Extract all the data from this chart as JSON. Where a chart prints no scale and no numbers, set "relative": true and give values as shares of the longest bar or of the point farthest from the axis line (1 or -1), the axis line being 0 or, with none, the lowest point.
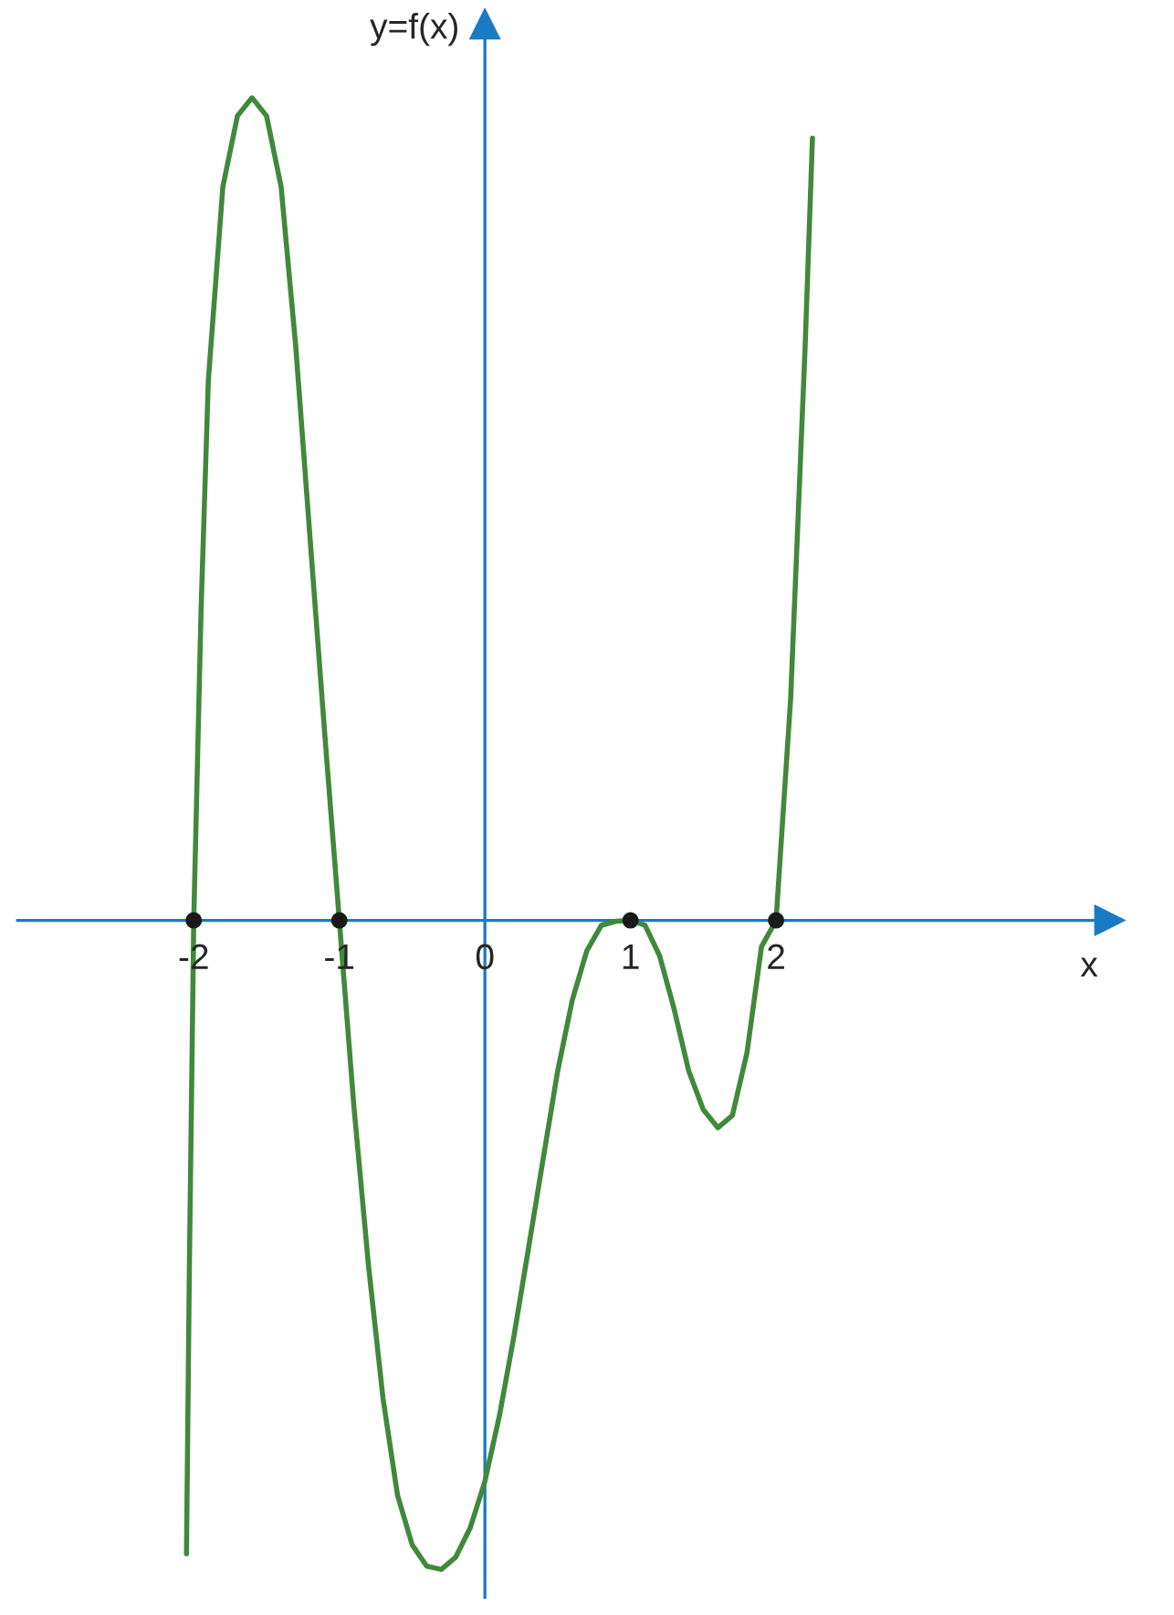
{
  "chart_data": {
    "type": "line",
    "relative": true,
    "xlabel": "x",
    "ylabel": "y=f(x)",
    "xlim": [
      -3.21,
      4.29
    ],
    "xticks": [
      -2,
      -1,
      0,
      1,
      2
    ],
    "grid": false,
    "legend": false,
    "ref_lines": [
      {
        "axis": "x",
        "value": 0,
        "color": "#1a7bc4"
      }
    ],
    "series": [
      {
        "type": "line",
        "color": "#3f8a3a",
        "marker": "none",
        "line_style": "solid",
        "x": [
          -2.05,
          -2.03,
          -2.0,
          -1.95,
          -1.9,
          -1.8,
          -1.7,
          -1.6,
          -1.5,
          -1.4,
          -1.3,
          -1.2,
          -1.1,
          -1.0,
          -0.9,
          -0.8,
          -0.7,
          -0.6,
          -0.5,
          -0.4,
          -0.3,
          -0.2,
          -0.1,
          0.0,
          0.1,
          0.2,
          0.3,
          0.4,
          0.5,
          0.6,
          0.7,
          0.8,
          0.9,
          1.0,
          1.1,
          1.2,
          1.3,
          1.4,
          1.5,
          1.6,
          1.7,
          1.8,
          1.9,
          2.0,
          2.1,
          2.2,
          2.25
        ],
        "values": [
          -0.77,
          -0.42,
          0.0,
          0.376,
          0.656,
          0.892,
          0.978,
          1.0,
          0.978,
          0.892,
          0.699,
          0.462,
          0.226,
          0.0,
          -0.226,
          -0.419,
          -0.581,
          -0.699,
          -0.759,
          -0.785,
          -0.789,
          -0.774,
          -0.738,
          -0.682,
          -0.602,
          -0.505,
          -0.398,
          -0.29,
          -0.183,
          -0.097,
          -0.037,
          -0.006,
          -0.001,
          0.0,
          -0.006,
          -0.043,
          -0.108,
          -0.183,
          -0.23,
          -0.252,
          -0.237,
          -0.161,
          -0.032,
          0.0,
          0.269,
          0.699,
          0.951
        ]
      },
      {
        "type": "scatter",
        "color": "#1a1a1a",
        "marker": "circle",
        "x": [
          -2,
          -1,
          1,
          2
        ],
        "values": [
          0,
          0,
          0,
          0
        ]
      }
    ]
  }
}
